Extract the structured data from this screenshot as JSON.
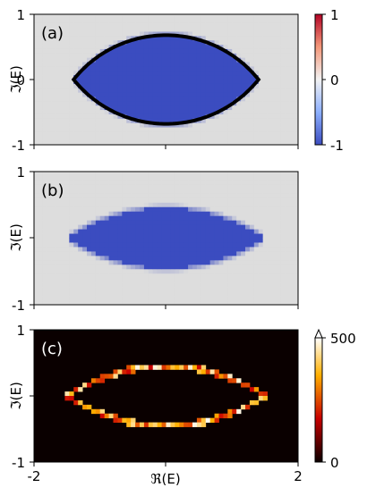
{
  "chart_data": [
    {
      "type": "heatmap",
      "panel_label": "(a)",
      "ylabel": "ℑ(E)",
      "xlim": [
        -2,
        2
      ],
      "ylim": [
        -1,
        1
      ],
      "yticks": [
        "1",
        "0",
        "-1"
      ],
      "background_value": 0,
      "interior_value": -1,
      "region": {
        "re_half_width": 1.4,
        "im_half_height": 0.68
      },
      "boundary_curve": {
        "color": "#000000",
        "shape": "lens",
        "re_half_width": 1.4,
        "im_half_height": 0.68
      },
      "colorbar": {
        "ticks": [
          "1",
          "0",
          "-1"
        ],
        "range": [
          -1,
          1
        ],
        "colormap": "coolwarm"
      }
    },
    {
      "type": "heatmap",
      "panel_label": "(b)",
      "ylabel": "ℑ(E)",
      "xlim": [
        -2,
        2
      ],
      "ylim": [
        -1,
        1
      ],
      "yticks": [
        "1",
        "",
        "-1"
      ],
      "background_value": 0,
      "interior_value": -1,
      "region": {
        "re_half_width": 1.5,
        "im_half_height": 0.45
      }
    },
    {
      "type": "heatmap",
      "panel_label": "(c)",
      "ylabel": "ℑ(E)",
      "xlabel": "ℜ(E)",
      "xlim": [
        -2,
        2
      ],
      "ylim": [
        -1,
        1
      ],
      "xticks": [
        "-2",
        "2"
      ],
      "yticks": [
        "1",
        "",
        "-1"
      ],
      "ring": {
        "re_half_width": 1.5,
        "im_half_height": 0.45
      },
      "colorbar": {
        "ticks": [
          "500",
          "0"
        ],
        "range": [
          0,
          500
        ],
        "colormap": "hot",
        "extend": "max"
      }
    }
  ]
}
